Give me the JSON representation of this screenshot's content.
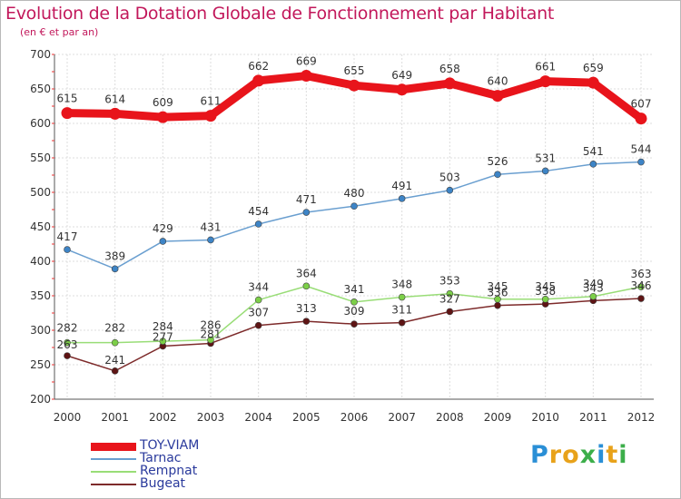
{
  "title": "Evolution de la Dotation Globale de Fonctionnement par Habitant",
  "subtitle": "(en € et par an)",
  "logo": {
    "text": "Proxiti",
    "letters": [
      "P",
      "r",
      "o",
      "x",
      "i",
      "t",
      "i"
    ],
    "colors": [
      "#2a8fd6",
      "#e8a21a",
      "#e8a21a",
      "#3cae4a",
      "#2a8fd6",
      "#e8a21a",
      "#3cae4a"
    ]
  },
  "chart_data": {
    "type": "line",
    "title": "Evolution de la Dotation Globale de Fonctionnement par Habitant",
    "subtitle": "(en € et par an)",
    "xlabel": "",
    "ylabel": "",
    "x": [
      "2000",
      "2001",
      "2002",
      "2003",
      "2004",
      "2005",
      "2006",
      "2007",
      "2008",
      "2009",
      "2010",
      "2011",
      "2012"
    ],
    "ylim": [
      200,
      700
    ],
    "yticks": [
      200,
      250,
      300,
      350,
      400,
      450,
      500,
      550,
      600,
      650,
      700
    ],
    "grid": true,
    "legend_position": "bottom-left",
    "series": [
      {
        "name": "TOY-VIAM",
        "color": "#e8141b",
        "marker": "#e8141b",
        "values": [
          615,
          614,
          609,
          611,
          662,
          669,
          655,
          649,
          658,
          640,
          661,
          659,
          607
        ]
      },
      {
        "name": "Tarnac",
        "color": "#6a9fd0",
        "marker": "#3d84c6",
        "values": [
          417,
          389,
          429,
          431,
          454,
          471,
          480,
          491,
          503,
          526,
          531,
          541,
          544
        ]
      },
      {
        "name": "Rempnat",
        "color": "#99dd77",
        "marker": "#7ccf48",
        "values": [
          282,
          282,
          284,
          286,
          344,
          364,
          341,
          348,
          353,
          345,
          345,
          349,
          363
        ]
      },
      {
        "name": "Bugeat",
        "color": "#7d2a2a",
        "marker": "#5e1414",
        "values": [
          263,
          241,
          277,
          281,
          307,
          313,
          309,
          311,
          327,
          336,
          338,
          343,
          346
        ]
      }
    ]
  }
}
